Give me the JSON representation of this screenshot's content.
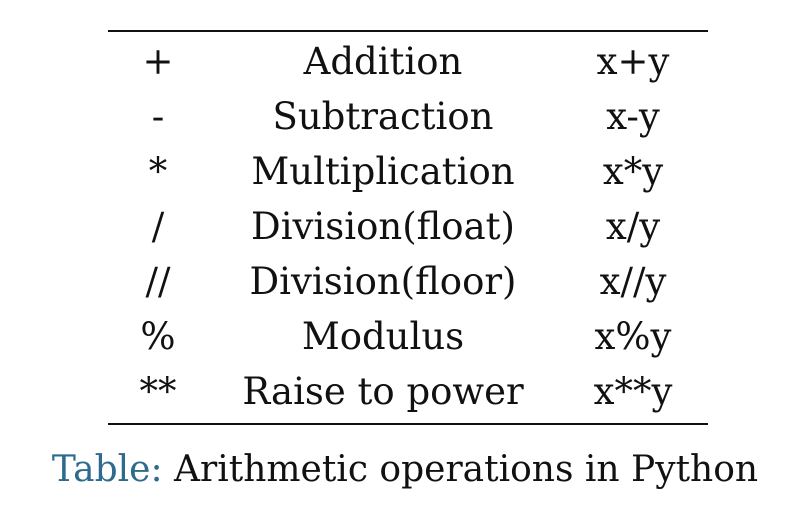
{
  "table": {
    "rows": [
      {
        "operator": "+",
        "name": "Addition",
        "example": "x+y"
      },
      {
        "operator": "-",
        "name": "Subtraction",
        "example": "x-y"
      },
      {
        "operator": "*",
        "name": "Multiplication",
        "example": "x*y"
      },
      {
        "operator": "/",
        "name": "Division(float)",
        "example": "x/y"
      },
      {
        "operator": "//",
        "name": "Division(floor)",
        "example": "x//y"
      },
      {
        "operator": "%",
        "name": "Modulus",
        "example": "x%y"
      },
      {
        "operator": "**",
        "name": "Raise to power",
        "example": "x**y"
      }
    ]
  },
  "caption": {
    "label": "Table:",
    "text": " Arithmetic operations in Python",
    "label_color": "#2e6a8e"
  }
}
